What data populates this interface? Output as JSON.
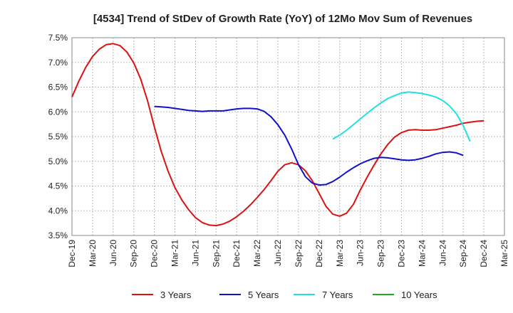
{
  "chart_data": {
    "type": "line",
    "title": "[4534]  Trend of StDev of Growth Rate (YoY) of 12Mo Mov Sum of Revenues",
    "xlabel": "",
    "ylabel": "",
    "ylim": [
      3.5,
      7.5
    ],
    "yticks": [
      "3.5%",
      "4.0%",
      "4.5%",
      "5.0%",
      "5.5%",
      "6.0%",
      "6.5%",
      "7.0%",
      "7.5%"
    ],
    "ytick_values": [
      3.5,
      4.0,
      4.5,
      5.0,
      5.5,
      6.0,
      6.5,
      7.0,
      7.5
    ],
    "xticks": [
      "Dec-19",
      "Mar-20",
      "Jun-20",
      "Sep-20",
      "Dec-20",
      "Mar-21",
      "Jun-21",
      "Sep-21",
      "Dec-21",
      "Mar-22",
      "Jun-22",
      "Sep-22",
      "Dec-22",
      "Mar-23",
      "Jun-23",
      "Sep-23",
      "Dec-23",
      "Mar-24",
      "Jun-24",
      "Sep-24",
      "Dec-24",
      "Mar-25"
    ],
    "x_start_index": 0,
    "x_end_index": 63,
    "grid": true,
    "legend_position": "bottom",
    "series": [
      {
        "name": "3 Years",
        "color": "#dd1111",
        "start_index": 0,
        "values": [
          6.3,
          6.62,
          6.9,
          7.12,
          7.27,
          7.36,
          7.38,
          7.34,
          7.21,
          6.99,
          6.67,
          6.23,
          5.7,
          5.2,
          4.8,
          4.47,
          4.22,
          4.02,
          3.86,
          3.76,
          3.71,
          3.7,
          3.73,
          3.79,
          3.88,
          3.99,
          4.12,
          4.27,
          4.43,
          4.61,
          4.8,
          4.93,
          4.97,
          4.93,
          4.81,
          4.61,
          4.35,
          4.09,
          3.93,
          3.89,
          3.95,
          4.13,
          4.42,
          4.68,
          4.92,
          5.15,
          5.34,
          5.49,
          5.58,
          5.63,
          5.64,
          5.63,
          5.63,
          5.64,
          5.67,
          5.7,
          5.73,
          5.77,
          5.79,
          5.81,
          5.82
        ]
      },
      {
        "name": "5 Years",
        "color": "#1111cc",
        "start_index": 12,
        "values": [
          6.11,
          6.1,
          6.09,
          6.07,
          6.05,
          6.03,
          6.02,
          6.01,
          6.02,
          6.02,
          6.02,
          6.04,
          6.06,
          6.07,
          6.07,
          6.06,
          6.01,
          5.9,
          5.74,
          5.53,
          5.25,
          4.93,
          4.69,
          4.56,
          4.52,
          4.53,
          4.59,
          4.68,
          4.78,
          4.87,
          4.95,
          5.01,
          5.06,
          5.08,
          5.07,
          5.05,
          5.03,
          5.02,
          5.03,
          5.06,
          5.1,
          5.15,
          5.18,
          5.19,
          5.17,
          5.12
        ]
      },
      {
        "name": "7 Years",
        "color": "#22e0e0",
        "start_index": 38,
        "values": [
          5.45,
          5.53,
          5.63,
          5.74,
          5.86,
          5.97,
          6.08,
          6.18,
          6.27,
          6.33,
          6.38,
          6.4,
          6.39,
          6.37,
          6.34,
          6.3,
          6.23,
          6.12,
          5.96,
          5.72,
          5.4
        ]
      },
      {
        "name": "10 Years",
        "color": "#22aa22",
        "start_index": 0,
        "values": []
      }
    ]
  }
}
